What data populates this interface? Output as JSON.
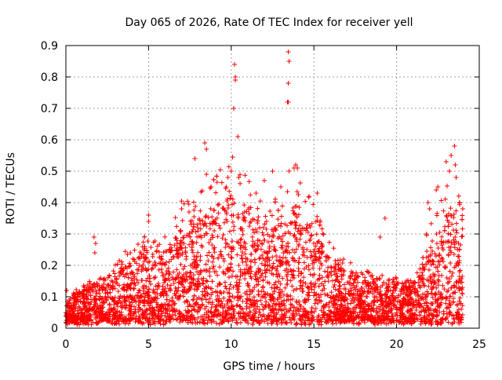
{
  "chart_data": {
    "type": "scatter",
    "title": "Day 065 of 2026, Rate Of TEC Index for receiver yell",
    "xlabel": "GPS time / hours",
    "ylabel": "ROTI / TECUs",
    "xlim": [
      0,
      25
    ],
    "ylim": [
      0,
      0.9
    ],
    "xticks": [
      0,
      5,
      10,
      15,
      20,
      25
    ],
    "yticks": [
      0,
      0.1,
      0.2,
      0.3,
      0.4,
      0.5,
      0.6,
      0.7,
      0.8,
      0.9
    ],
    "grid": true,
    "marker": "+",
    "color": "#ff0000",
    "envelope": [
      [
        0.0,
        0.06
      ],
      [
        0.5,
        0.09
      ],
      [
        1.0,
        0.1
      ],
      [
        1.5,
        0.12
      ],
      [
        2.0,
        0.12
      ],
      [
        2.5,
        0.12
      ],
      [
        3.0,
        0.15
      ],
      [
        3.5,
        0.18
      ],
      [
        4.0,
        0.2
      ],
      [
        4.5,
        0.22
      ],
      [
        5.0,
        0.24
      ],
      [
        5.5,
        0.22
      ],
      [
        6.0,
        0.22
      ],
      [
        6.5,
        0.26
      ],
      [
        7.0,
        0.3
      ],
      [
        7.5,
        0.3
      ],
      [
        8.0,
        0.32
      ],
      [
        8.5,
        0.35
      ],
      [
        9.0,
        0.36
      ],
      [
        9.5,
        0.38
      ],
      [
        10.0,
        0.42
      ],
      [
        10.5,
        0.38
      ],
      [
        11.0,
        0.36
      ],
      [
        11.5,
        0.33
      ],
      [
        12.0,
        0.3
      ],
      [
        12.5,
        0.3
      ],
      [
        13.0,
        0.32
      ],
      [
        13.5,
        0.36
      ],
      [
        14.0,
        0.38
      ],
      [
        14.5,
        0.34
      ],
      [
        15.0,
        0.3
      ],
      [
        15.5,
        0.25
      ],
      [
        16.0,
        0.2
      ],
      [
        16.5,
        0.18
      ],
      [
        17.0,
        0.16
      ],
      [
        17.5,
        0.15
      ],
      [
        18.0,
        0.14
      ],
      [
        18.5,
        0.13
      ],
      [
        19.0,
        0.13
      ],
      [
        19.5,
        0.12
      ],
      [
        20.0,
        0.12
      ],
      [
        20.5,
        0.11
      ],
      [
        21.0,
        0.12
      ],
      [
        21.5,
        0.18
      ],
      [
        22.0,
        0.25
      ],
      [
        22.5,
        0.3
      ],
      [
        23.0,
        0.33
      ],
      [
        23.5,
        0.38
      ],
      [
        24.0,
        0.32
      ]
    ],
    "outliers": [
      [
        0.05,
        0.12
      ],
      [
        1.7,
        0.29
      ],
      [
        1.75,
        0.24
      ],
      [
        1.8,
        0.27
      ],
      [
        3.9,
        0.24
      ],
      [
        5.0,
        0.36
      ],
      [
        5.0,
        0.34
      ],
      [
        7.0,
        0.38
      ],
      [
        7.8,
        0.54
      ],
      [
        8.4,
        0.59
      ],
      [
        8.5,
        0.57
      ],
      [
        8.5,
        0.49
      ],
      [
        9.8,
        0.48
      ],
      [
        10.0,
        0.5
      ],
      [
        10.15,
        0.7
      ],
      [
        10.2,
        0.84
      ],
      [
        10.25,
        0.8
      ],
      [
        10.25,
        0.79
      ],
      [
        10.4,
        0.61
      ],
      [
        10.45,
        0.48
      ],
      [
        11.5,
        0.43
      ],
      [
        12.0,
        0.47
      ],
      [
        12.5,
        0.5
      ],
      [
        13.0,
        0.45
      ],
      [
        13.4,
        0.72
      ],
      [
        13.45,
        0.88
      ],
      [
        13.5,
        0.85
      ],
      [
        13.45,
        0.78
      ],
      [
        13.45,
        0.72
      ],
      [
        13.5,
        0.5
      ],
      [
        13.8,
        0.51
      ],
      [
        13.9,
        0.52
      ],
      [
        14.0,
        0.51
      ],
      [
        15.2,
        0.43
      ],
      [
        19.0,
        0.29
      ],
      [
        19.3,
        0.35
      ],
      [
        21.9,
        0.4
      ],
      [
        22.0,
        0.38
      ],
      [
        22.4,
        0.44
      ],
      [
        22.5,
        0.45
      ],
      [
        23.0,
        0.53
      ],
      [
        23.2,
        0.5
      ],
      [
        23.3,
        0.55
      ],
      [
        23.5,
        0.58
      ],
      [
        23.55,
        0.52
      ],
      [
        23.6,
        0.48
      ],
      [
        23.8,
        0.4
      ],
      [
        24.0,
        0.38
      ]
    ]
  }
}
